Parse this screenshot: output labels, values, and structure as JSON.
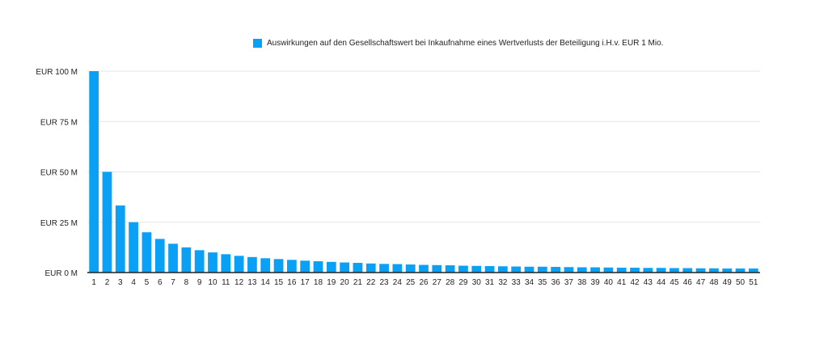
{
  "colors": {
    "bar": "#0aa0f5",
    "grid": "#e6e6e6",
    "axis": "#222222"
  },
  "chart_data": {
    "type": "bar",
    "title": "",
    "xlabel": "",
    "ylabel": "",
    "legend_position": "top",
    "grid": true,
    "ylim": [
      0,
      100
    ],
    "yticks": [
      0,
      25,
      50,
      75,
      100
    ],
    "ytick_labels": [
      "EUR 0 M",
      "EUR 25 M",
      "EUR 50 M",
      "EUR 75 M",
      "EUR 100 M"
    ],
    "categories": [
      "1",
      "2",
      "3",
      "4",
      "5",
      "6",
      "7",
      "8",
      "9",
      "10",
      "11",
      "12",
      "13",
      "14",
      "15",
      "16",
      "17",
      "18",
      "19",
      "20",
      "21",
      "22",
      "23",
      "24",
      "25",
      "26",
      "27",
      "28",
      "29",
      "30",
      "31",
      "32",
      "33",
      "34",
      "35",
      "36",
      "37",
      "38",
      "39",
      "40",
      "41",
      "42",
      "43",
      "44",
      "45",
      "46",
      "47",
      "48",
      "49",
      "50",
      "51"
    ],
    "series": [
      {
        "name": "Auswirkungen auf den Gesellschaftswert bei Inkaufnahme eines Wertverlusts der Beteiligung i.H.v. EUR 1 Mio.",
        "values": [
          100,
          50,
          33.3,
          25,
          20,
          16.7,
          14.3,
          12.5,
          11.1,
          10,
          9.1,
          8.3,
          7.7,
          7.1,
          6.7,
          6.3,
          5.9,
          5.6,
          5.3,
          5,
          4.8,
          4.5,
          4.3,
          4.2,
          4,
          3.8,
          3.7,
          3.6,
          3.4,
          3.3,
          3.2,
          3.1,
          3,
          2.9,
          2.9,
          2.8,
          2.7,
          2.6,
          2.6,
          2.5,
          2.4,
          2.4,
          2.3,
          2.3,
          2.2,
          2.2,
          2.1,
          2.1,
          2,
          2,
          2
        ]
      }
    ]
  }
}
